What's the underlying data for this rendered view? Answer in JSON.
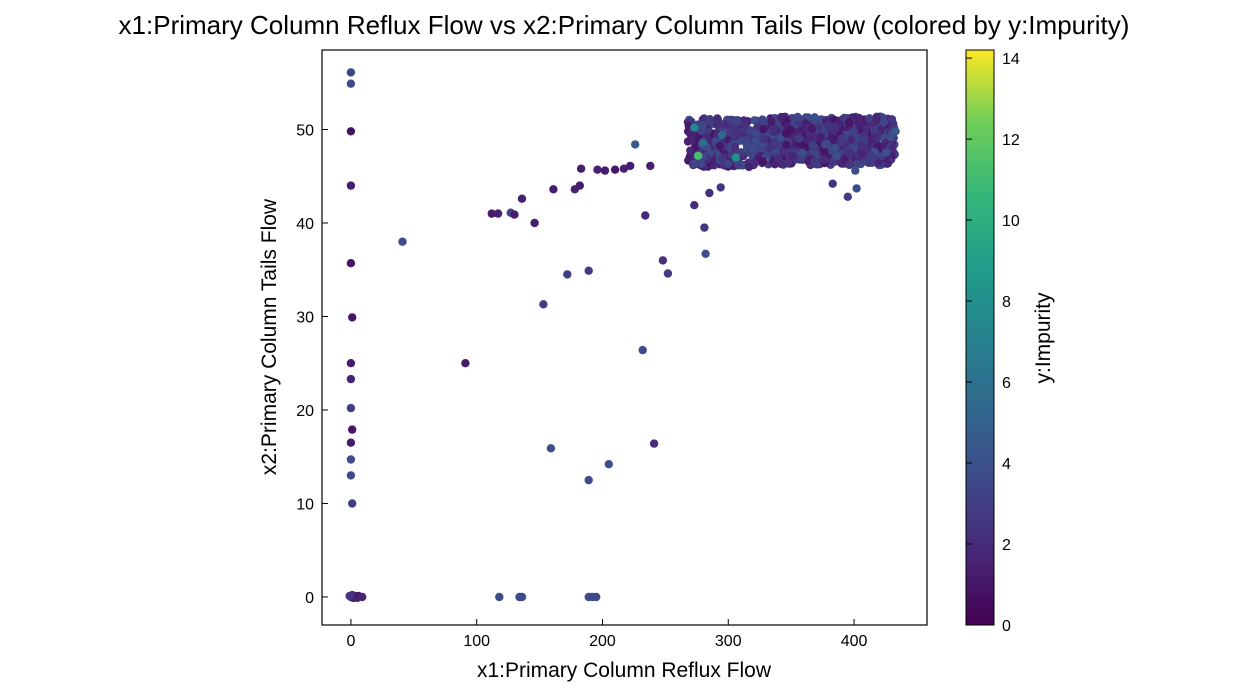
{
  "chart_data": {
    "type": "scatter",
    "title": "x1:Primary Column Reflux Flow vs x2:Primary Column Tails Flow (colored by y:Impurity)",
    "xlabel": "x1:Primary Column Reflux Flow",
    "ylabel": "x2:Primary Column Tails Flow",
    "colorbar_label": "y:Impurity",
    "colormap": "viridis",
    "xlim": [
      -23,
      458
    ],
    "ylim": [
      -3,
      58.5
    ],
    "clim": [
      0,
      14.2
    ],
    "xticks": [
      0,
      100,
      200,
      300,
      400
    ],
    "yticks": [
      0,
      10,
      20,
      30,
      40,
      50
    ],
    "cticks": [
      0,
      2,
      4,
      6,
      8,
      10,
      12,
      14
    ],
    "grid": false,
    "points": [
      [
        0,
        56.1,
        3.4
      ],
      [
        0,
        54.9,
        3.6
      ],
      [
        0,
        49.8,
        0.8
      ],
      [
        0,
        44.0,
        1.3
      ],
      [
        0,
        35.7,
        0.9
      ],
      [
        1,
        29.9,
        1.0
      ],
      [
        0,
        25.0,
        1.2
      ],
      [
        0,
        23.3,
        1.6
      ],
      [
        0,
        20.2,
        3.0
      ],
      [
        1,
        17.9,
        0.9
      ],
      [
        0,
        16.5,
        1.2
      ],
      [
        0,
        14.7,
        3.8
      ],
      [
        0,
        13.0,
        3.8
      ],
      [
        1,
        10.0,
        3.0
      ],
      [
        0,
        0.0,
        1.5
      ],
      [
        1,
        0.2,
        1.8
      ],
      [
        2,
        -0.1,
        1.2
      ],
      [
        3,
        0.1,
        1.6
      ],
      [
        4,
        0.0,
        2.2
      ],
      [
        5,
        -0.1,
        1.4
      ],
      [
        -1,
        0.1,
        2.5
      ],
      [
        6,
        0.1,
        1.2
      ],
      [
        9,
        0.0,
        1.7
      ],
      [
        41,
        38.0,
        3.8
      ],
      [
        91,
        25.0,
        1.1
      ],
      [
        118,
        0.0,
        3.8
      ],
      [
        134,
        0.0,
        3.8
      ],
      [
        136,
        0.0,
        3.6
      ],
      [
        189,
        0.0,
        3.8
      ],
      [
        192,
        0.0,
        3.5
      ],
      [
        195,
        0.0,
        3.6
      ],
      [
        112,
        41.0,
        1.1
      ],
      [
        117,
        41.0,
        1.4
      ],
      [
        127,
        41.1,
        3.2
      ],
      [
        130,
        40.9,
        1.3
      ],
      [
        136,
        42.6,
        1.4
      ],
      [
        146,
        40.0,
        1.3
      ],
      [
        153,
        31.3,
        2.8
      ],
      [
        159,
        15.9,
        3.8
      ],
      [
        161,
        43.6,
        1.2
      ],
      [
        172,
        34.5,
        3.0
      ],
      [
        178,
        43.6,
        1.4
      ],
      [
        182,
        44.0,
        1.3
      ],
      [
        183,
        45.8,
        1.3
      ],
      [
        189,
        34.9,
        2.8
      ],
      [
        189,
        12.5,
        3.8
      ],
      [
        196,
        45.7,
        1.4
      ],
      [
        202,
        45.6,
        1.3
      ],
      [
        205,
        14.2,
        3.9
      ],
      [
        210,
        45.7,
        1.2
      ],
      [
        217,
        45.8,
        1.4
      ],
      [
        222,
        46.1,
        1.3
      ],
      [
        226,
        48.4,
        4.7
      ],
      [
        232,
        26.4,
        3.8
      ],
      [
        234,
        40.8,
        1.8
      ],
      [
        238,
        46.1,
        1.3
      ],
      [
        241,
        16.4,
        2.0
      ],
      [
        248,
        36.0,
        2.2
      ],
      [
        252,
        34.6,
        2.8
      ],
      [
        273,
        41.9,
        2.0
      ],
      [
        281,
        39.5,
        2.6
      ],
      [
        282,
        36.7,
        3.9
      ],
      [
        285,
        43.2,
        2.2
      ],
      [
        294,
        43.8,
        2.5
      ],
      [
        383,
        44.2,
        2.4
      ],
      [
        395,
        42.8,
        2.9
      ],
      [
        401,
        45.6,
        3.8
      ],
      [
        402,
        43.7,
        3.8
      ],
      [
        276,
        47.2,
        11.2
      ],
      [
        306,
        47.0,
        8.2
      ],
      [
        273,
        50.2,
        7.5
      ],
      [
        280,
        48.6,
        5.8
      ],
      [
        295,
        49.4,
        5.2
      ],
      [
        433,
        49.8,
        4.5
      ],
      [
        429,
        49.2,
        3.8
      ]
    ]
  }
}
